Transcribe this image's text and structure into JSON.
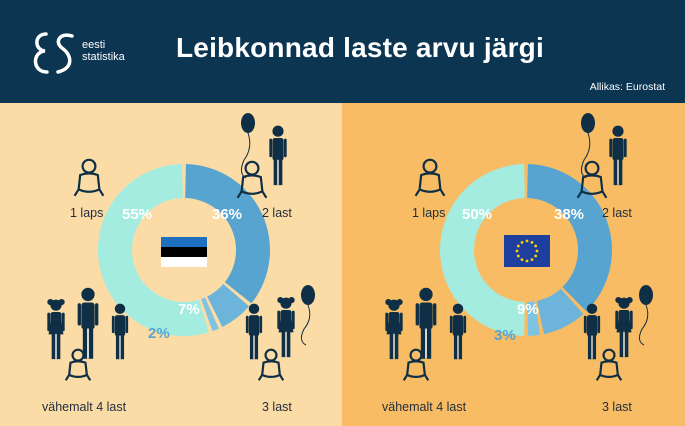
{
  "header": {
    "logo_line1": "eesti",
    "logo_line2": "statistika",
    "title": "Leibkonnad laste arvu järgi",
    "source": "Allikas: Eurostat"
  },
  "colors": {
    "header_bg": "#0c3552",
    "left_bg": "#fcdca6",
    "right_bg": "#f8bd64",
    "slice_1": "#a3ecdf",
    "slice_2": "#57a4d1",
    "slice_3": "#6cb4da",
    "slice_4": "#7fc3e2",
    "figures": "#0e2f45"
  },
  "labels": {
    "one": "1 laps",
    "two": "2 last",
    "three": "3 last",
    "four": "vähemalt 4 last"
  },
  "chart_data": [
    {
      "type": "pie",
      "title": "",
      "flag": "Estonia",
      "categories": [
        "1 laps",
        "2 last",
        "3 last",
        "vähemalt 4 last"
      ],
      "values": [
        55,
        36,
        7,
        2
      ],
      "value_labels": [
        "55%",
        "36%",
        "7%",
        "2%"
      ]
    },
    {
      "type": "pie",
      "title": "",
      "flag": "European Union",
      "categories": [
        "1 laps",
        "2 last",
        "3 last",
        "vähemalt 4 last"
      ],
      "values": [
        50,
        38,
        9,
        3
      ],
      "value_labels": [
        "50%",
        "38%",
        "9%",
        "3%"
      ]
    }
  ]
}
